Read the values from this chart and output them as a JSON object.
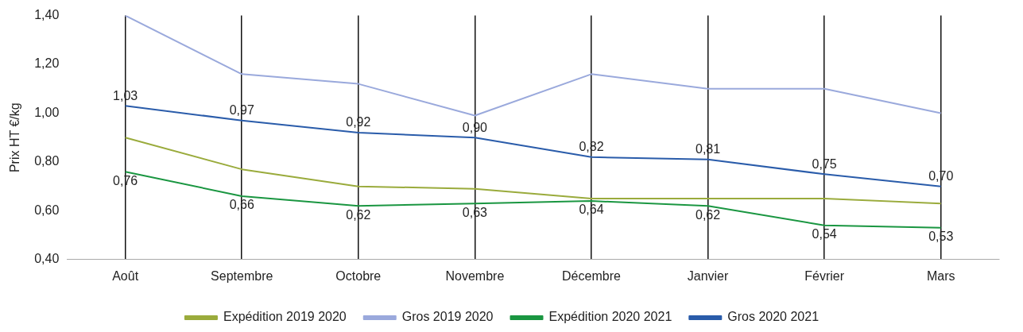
{
  "chart_data": {
    "type": "line",
    "ylabel": "Prix HT €/kg",
    "categories": [
      "Août",
      "Septembre",
      "Octobre",
      "Novembre",
      "Décembre",
      "Janvier",
      "Février",
      "Mars"
    ],
    "series": [
      {
        "name": "Expédition 2019 2020",
        "color": "#9aab3c",
        "values": [
          0.9,
          0.77,
          0.7,
          0.69,
          0.65,
          0.65,
          0.65,
          0.63
        ]
      },
      {
        "name": "Gros 2019 2020",
        "color": "#9aa9dc",
        "values": [
          1.4,
          1.16,
          1.12,
          0.99,
          1.16,
          1.1,
          1.1,
          1.0
        ]
      },
      {
        "name": "Expédition 2020 2021",
        "color": "#1a9641",
        "values": [
          0.76,
          0.66,
          0.62,
          0.63,
          0.64,
          0.62,
          0.54,
          0.53
        ],
        "value_labels": [
          "0,76",
          "0,66",
          "0,62",
          "0,63",
          "0,64",
          "0,62",
          "0,54",
          "0,53"
        ]
      },
      {
        "name": "Gros 2020 2021",
        "color": "#2a5caa",
        "values": [
          1.03,
          0.97,
          0.92,
          0.9,
          0.82,
          0.81,
          0.75,
          0.7
        ],
        "value_labels": [
          "1,03",
          "0,97",
          "0,92",
          "0,90",
          "0,82",
          "0,81",
          "0,75",
          "0,70"
        ]
      }
    ],
    "ylim": [
      0.4,
      1.4
    ],
    "yticks": [
      {
        "value": 0.4,
        "label": "0,40"
      },
      {
        "value": 0.6,
        "label": "0,60"
      },
      {
        "value": 0.8,
        "label": "0,80"
      },
      {
        "value": 1.0,
        "label": "1,00"
      },
      {
        "value": 1.2,
        "label": "1,20"
      },
      {
        "value": 1.4,
        "label": "1,40"
      }
    ],
    "grid": "x",
    "legend": "bottom",
    "marker": "none",
    "line_style": "solid"
  }
}
